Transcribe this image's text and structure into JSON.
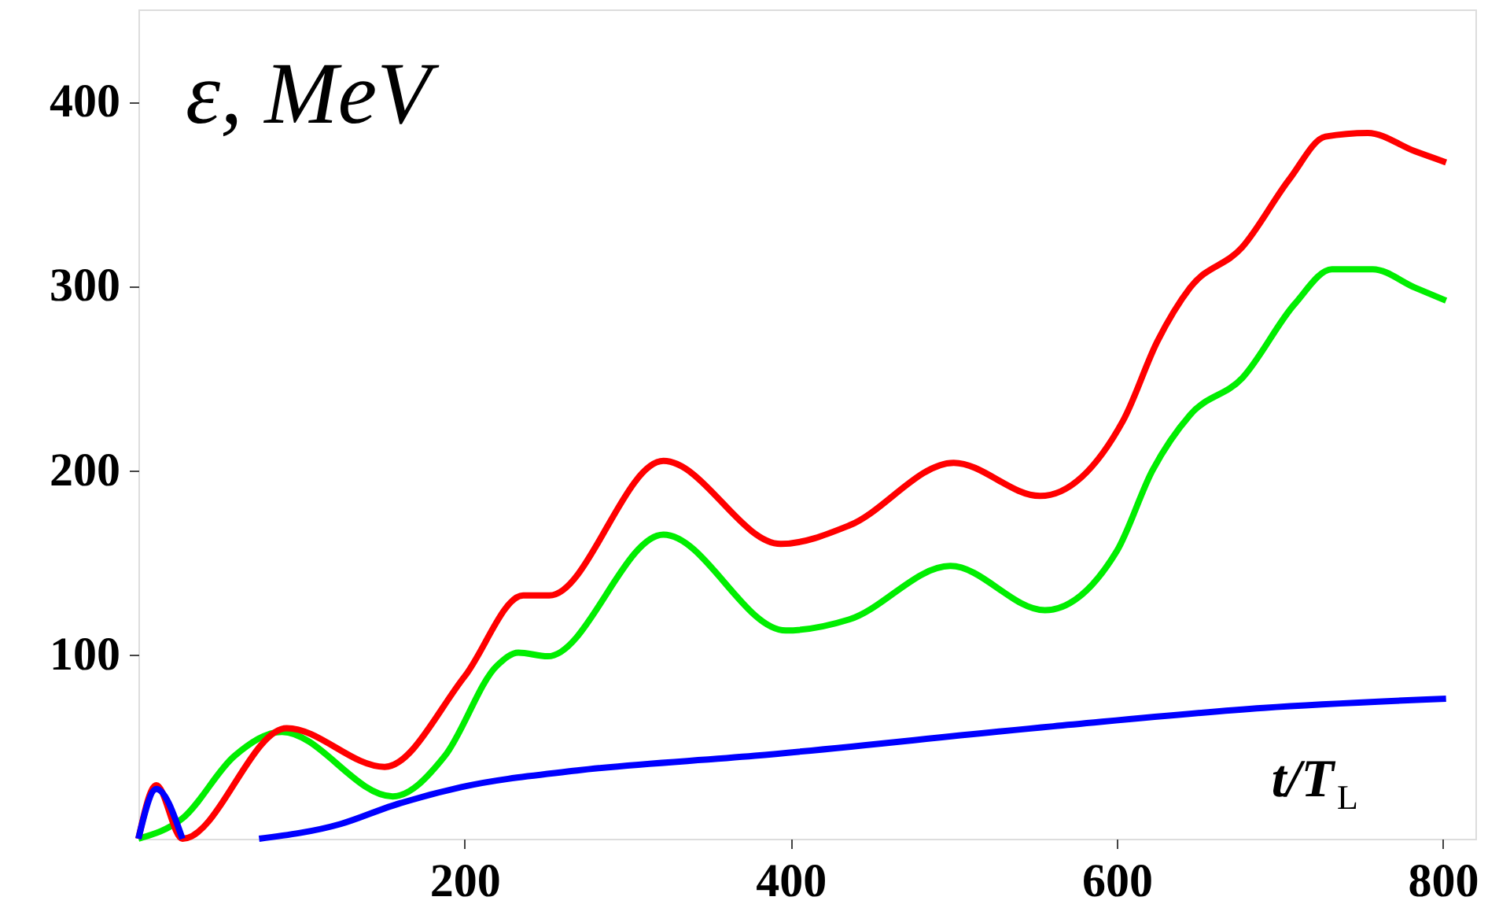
{
  "chart_data": {
    "type": "line",
    "xlabel": "t/T$_{L}$",
    "ylabel": "ε, MeV",
    "xlim": [
      0,
      820
    ],
    "ylim": [
      0,
      450
    ],
    "xticks": [
      200,
      400,
      600,
      800
    ],
    "yticks": [
      100,
      200,
      300,
      400
    ],
    "grid": false,
    "line_style": "solid",
    "marker": "none",
    "series": [
      {
        "color": "#00ee00",
        "x": [
          0,
          27,
          59,
          88,
          156,
          188,
          220,
          233,
          251,
          322,
          397,
          436,
          498,
          556,
          600,
          622,
          645,
          677,
          709,
          732,
          757,
          783,
          802
        ],
        "values": [
          0,
          11,
          45,
          58,
          23,
          45,
          94,
          101,
          99,
          165,
          113,
          119,
          148,
          124,
          156,
          200,
          230,
          250,
          290,
          309,
          309,
          299,
          292
        ]
      },
      {
        "color": "#ff0000",
        "x": [
          0,
          11,
          27,
          91,
          151,
          200,
          236,
          252,
          322,
          394,
          436,
          500,
          553,
          604,
          625,
          645,
          677,
          706,
          728,
          754,
          783,
          802
        ],
        "values": [
          0,
          29,
          0,
          60,
          39,
          88,
          132,
          132,
          205,
          160,
          170,
          204,
          186,
          227,
          270,
          299,
          321,
          358,
          381,
          383,
          373,
          367
        ]
      },
      {
        "color": "#0000ff",
        "x": [
          0,
          11,
          27,
          50,
          74,
          124,
          156,
          198,
          269,
          378,
          561,
          690,
          802
        ],
        "values": [
          0,
          27,
          0,
          null,
          0,
          8,
          18,
          28,
          37,
          45,
          61,
          71,
          76
        ]
      }
    ]
  }
}
